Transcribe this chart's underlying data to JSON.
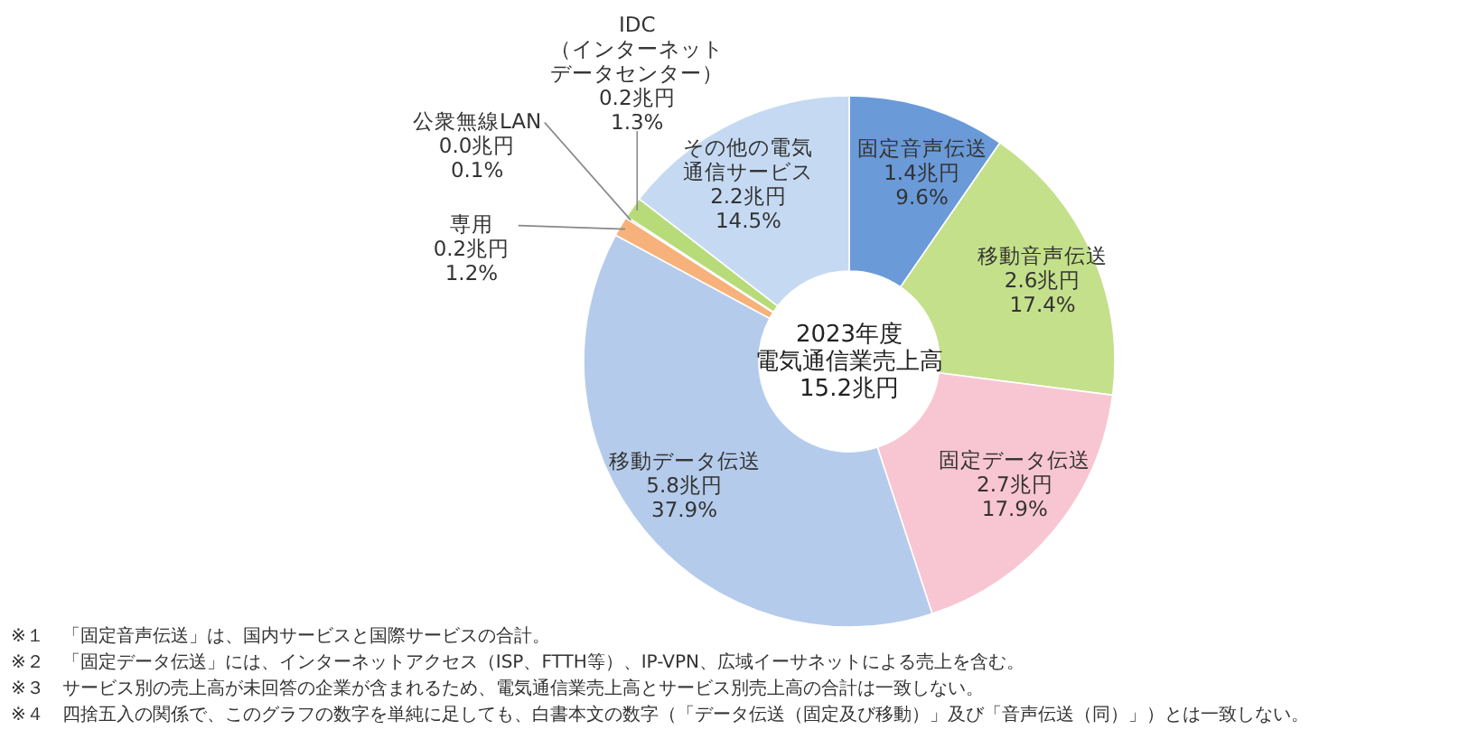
{
  "chart_data": {
    "type": "donut",
    "categories": [
      "固定音声伝送",
      "移動音声伝送",
      "固定データ伝送",
      "移動データ伝送",
      "専用",
      "公衆無線LAN",
      "IDC（インターネットデータセンター）",
      "その他の電気通信サービス"
    ],
    "values": [
      9.6,
      17.4,
      17.9,
      37.9,
      1.2,
      0.1,
      1.3,
      14.5
    ],
    "value_labels": [
      "1.4兆円\n9.6%",
      "2.6兆円\n17.4%",
      "2.7兆円\n17.9%",
      "5.8兆円\n37.9%",
      "0.2兆円\n1.2%",
      "0.0兆円\n0.1%",
      "0.2兆円\n1.3%",
      "2.2兆円\n14.5%"
    ],
    "colors": [
      "#6a9ad8",
      "#c4e08a",
      "#f8c6d2",
      "#b5cbeb",
      "#f6b27a",
      "#404040",
      "#b8db7a",
      "#c5daf2"
    ],
    "annotations": [
      "2023年度",
      "電気通信業売上高",
      "15.2兆円",
      "※１　「固定音声伝送」は、国内サービスと国際サービスの合計。",
      "※２　「固定データ伝送」には、インターネットアクセス（ISP、FTTH等）、IP-VPN、広域イーサネットによる売上を含む。",
      "※３　サービス別の売上高が未回答の企業が含まれるため、電気通信業売上高とサービス別売上高の合計は一致しない。",
      "※４　四捨五入の関係で、このグラフの数字を単純に足しても、白書本文の数字（「データ伝送（固定及び移動）」及び「音声伝送（同）」）とは一致しない。"
    ]
  }
}
